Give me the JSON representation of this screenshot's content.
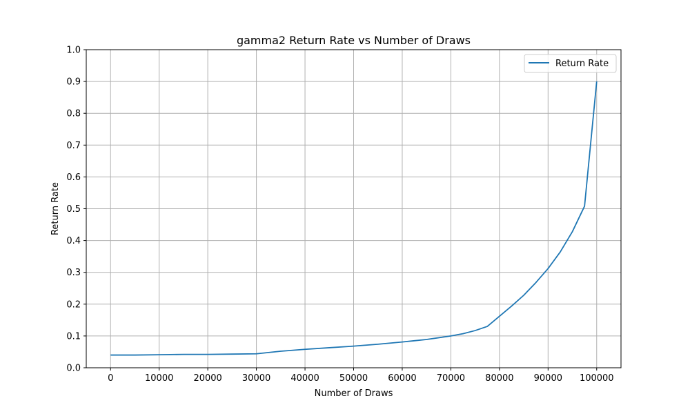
{
  "chart_data": {
    "type": "line",
    "title": "gamma2 Return Rate vs Number of Draws",
    "xlabel": "Number of Draws",
    "ylabel": "Return Rate",
    "xlim": [
      -5000,
      105000
    ],
    "ylim": [
      0.0,
      1.0
    ],
    "xticks": [
      0,
      10000,
      20000,
      30000,
      40000,
      50000,
      60000,
      70000,
      80000,
      90000,
      100000
    ],
    "xtick_labels": [
      "0",
      "10000",
      "20000",
      "30000",
      "40000",
      "50000",
      "60000",
      "70000",
      "80000",
      "90000",
      "100000"
    ],
    "yticks": [
      0.0,
      0.1,
      0.2,
      0.3,
      0.4,
      0.5,
      0.6,
      0.7,
      0.8,
      0.9,
      1.0
    ],
    "ytick_labels": [
      "0.0",
      "0.1",
      "0.2",
      "0.3",
      "0.4",
      "0.5",
      "0.6",
      "0.7",
      "0.8",
      "0.9",
      "1.0"
    ],
    "grid": true,
    "legend_position": "top-right",
    "series": [
      {
        "name": "Return Rate",
        "color": "#1f77b4",
        "x": [
          0,
          5000,
          10000,
          15000,
          20000,
          25000,
          30000,
          32500,
          35000,
          40000,
          45000,
          50000,
          55000,
          60000,
          62500,
          65000,
          70000,
          72500,
          75000,
          77500,
          80000,
          82500,
          85000,
          87500,
          90000,
          92500,
          95000,
          97500,
          100000
        ],
        "y": [
          0.04,
          0.04,
          0.041,
          0.042,
          0.042,
          0.043,
          0.044,
          0.048,
          0.052,
          0.058,
          0.063,
          0.068,
          0.074,
          0.081,
          0.085,
          0.089,
          0.1,
          0.107,
          0.117,
          0.13,
          0.162,
          0.194,
          0.228,
          0.268,
          0.312,
          0.364,
          0.428,
          0.508,
          0.9
        ]
      }
    ]
  }
}
